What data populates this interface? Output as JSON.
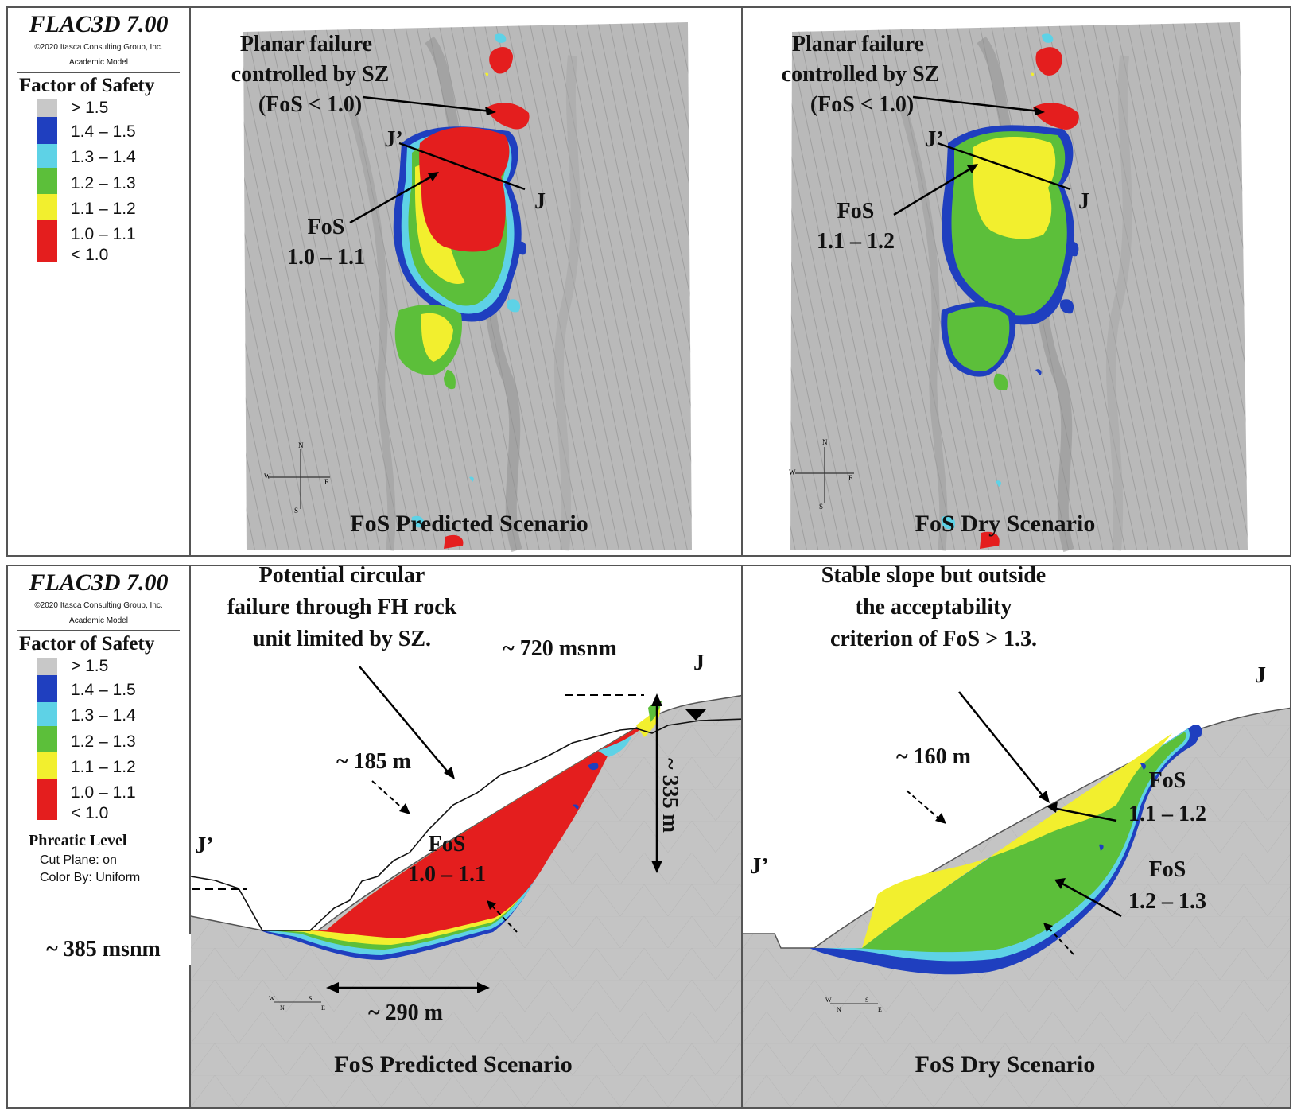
{
  "legend_top": {
    "software": "FLAC3D 7.00",
    "copyright": "©2020 Itasca Consulting Group, Inc.",
    "model": "Academic Model",
    "title": "Factor of Safety",
    "items": [
      {
        "label": "> 1.5",
        "color": "#c8c8c8"
      },
      {
        "label": "1.4 – 1.5",
        "color": "#1f3fbf"
      },
      {
        "label": "1.3 – 1.4",
        "color": "#5ed2e6"
      },
      {
        "label": "1.2 – 1.3",
        "color": "#5cbf3a"
      },
      {
        "label": "1.1 – 1.2",
        "color": "#f2ef2e"
      },
      {
        "label": "1.0 – 1.1",
        "color": "#e41e1e"
      },
      {
        "label": "< 1.0",
        "color": "#e41e1e"
      }
    ]
  },
  "legend_bottom": {
    "software": "FLAC3D 7.00",
    "copyright": "©2020 Itasca Consulting Group, Inc.",
    "model": "Academic Model",
    "title": "Factor of Safety",
    "items": [
      {
        "label": "> 1.5",
        "color": "#c8c8c8"
      },
      {
        "label": "1.4 – 1.5",
        "color": "#1f3fbf"
      },
      {
        "label": "1.3 – 1.4",
        "color": "#5ed2e6"
      },
      {
        "label": "1.2 – 1.3",
        "color": "#5cbf3a"
      },
      {
        "label": "1.1 – 1.2",
        "color": "#f2ef2e"
      },
      {
        "label": "1.0 – 1.1",
        "color": "#e41e1e"
      },
      {
        "label": "< 1.0",
        "color": "#e41e1e"
      }
    ],
    "phreatic_title": "Phreatic Level",
    "phreatic_cut": "Cut Plane: on",
    "phreatic_color": "Color By: Uniform"
  },
  "plan_predicted": {
    "annotation_planar_1": "Planar failure",
    "annotation_planar_2": "controlled by SZ",
    "annotation_planar_3": "(FoS < 1.0)",
    "section_start": "J’",
    "section_end": "J",
    "fos_label_1": "FoS",
    "fos_label_2": "1.0 – 1.1",
    "compass": {
      "n": "N",
      "s": "S",
      "e": "E",
      "w": "W"
    },
    "scenario": "FoS Predicted Scenario"
  },
  "plan_dry": {
    "annotation_planar_1": "Planar failure",
    "annotation_planar_2": "controlled by SZ",
    "annotation_planar_3": "(FoS < 1.0)",
    "section_start": "J’",
    "section_end": "J",
    "fos_label_1": "FoS",
    "fos_label_2": "1.1 – 1.2",
    "compass": {
      "n": "N",
      "s": "S",
      "e": "E",
      "w": "W"
    },
    "scenario": "FoS Dry Scenario"
  },
  "section_predicted": {
    "annotation_1": "Potential circular",
    "annotation_2": "failure through FH rock",
    "annotation_3": "unit limited by SZ.",
    "elev_top": "~ 720 msnm",
    "elev_bottom": "~ 385 msnm",
    "height": "~ 335 m",
    "depth": "~ 185 m",
    "width": "~ 290 m",
    "end_left": "J’",
    "end_right": "J",
    "fos_label_1": "FoS",
    "fos_label_2": "1.0 – 1.1",
    "compass": {
      "w": "W",
      "s": "S",
      "n": "N",
      "e": "E"
    },
    "scenario": "FoS Predicted Scenario"
  },
  "section_dry": {
    "annotation_1": "Stable slope but outside",
    "annotation_2": "the acceptability",
    "annotation_3": "criterion of FoS > 1.3.",
    "depth": "~ 160 m",
    "end_left": "J’",
    "end_right": "J",
    "fos_a_1": "FoS",
    "fos_a_2": "1.1 – 1.2",
    "fos_b_1": "FoS",
    "fos_b_2": "1.2 – 1.3",
    "compass": {
      "w": "W",
      "s": "S",
      "n": "N",
      "e": "E"
    },
    "scenario": "FoS Dry Scenario"
  }
}
